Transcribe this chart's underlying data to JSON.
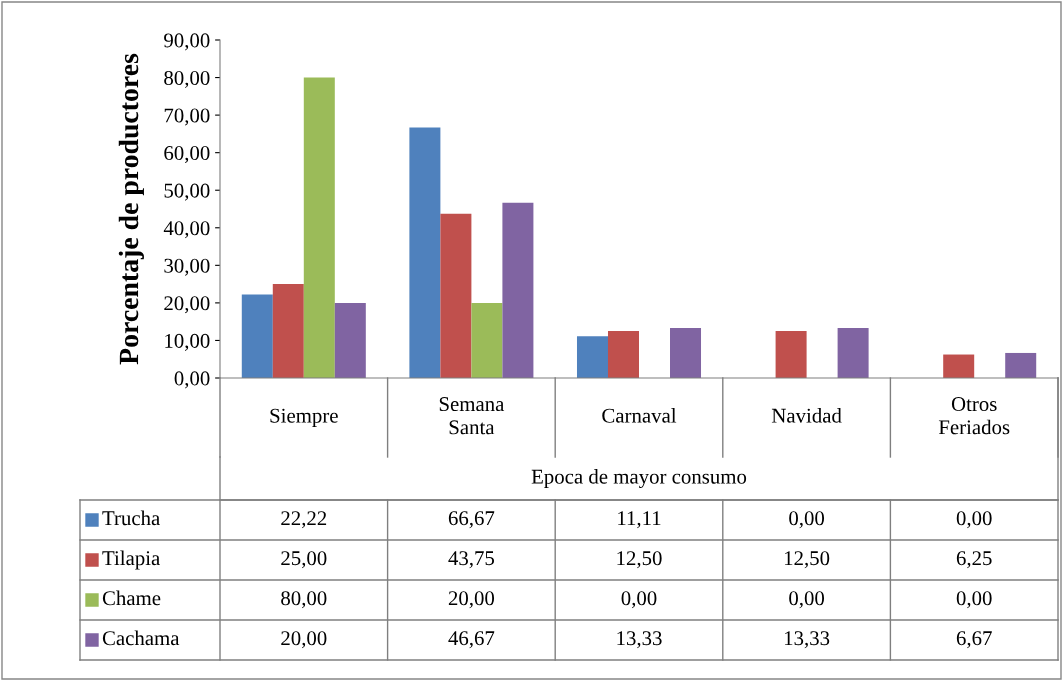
{
  "chart_data": {
    "type": "bar",
    "ylabel": "Porcentaje de productores",
    "xlabel": "Epoca de mayor consumo",
    "categories": [
      "Siempre",
      "Semana\nSanta",
      "Carnaval",
      "Navidad",
      "Otros\nFeriados"
    ],
    "series": [
      {
        "name": "Trucha",
        "color": "#4f81bd",
        "values": [
          22.22,
          66.67,
          11.11,
          0.0,
          0.0
        ],
        "value_labels": [
          "22,22",
          "66,67",
          "11,11",
          "0,00",
          "0,00"
        ]
      },
      {
        "name": "Tilapia",
        "color": "#c0504d",
        "values": [
          25.0,
          43.75,
          12.5,
          12.5,
          6.25
        ],
        "value_labels": [
          "25,00",
          "43,75",
          "12,50",
          "12,50",
          "6,25"
        ]
      },
      {
        "name": "Chame",
        "color": "#9bbb59",
        "values": [
          80.0,
          20.0,
          0.0,
          0.0,
          0.0
        ],
        "value_labels": [
          "80,00",
          "20,00",
          "0,00",
          "0,00",
          "0,00"
        ]
      },
      {
        "name": "Cachama",
        "color": "#8064a2",
        "values": [
          20.0,
          46.67,
          13.33,
          13.33,
          6.67
        ],
        "value_labels": [
          "20,00",
          "46,67",
          "13,33",
          "13,33",
          "6,67"
        ]
      }
    ],
    "ylim": [
      0,
      90
    ],
    "yticks": [
      {
        "value": 0,
        "label": "0,00"
      },
      {
        "value": 10,
        "label": "10,00"
      },
      {
        "value": 20,
        "label": "20,00"
      },
      {
        "value": 30,
        "label": "30,00"
      },
      {
        "value": 40,
        "label": "40,00"
      },
      {
        "value": 50,
        "label": "50,00"
      },
      {
        "value": 60,
        "label": "60,00"
      },
      {
        "value": 70,
        "label": "70,00"
      },
      {
        "value": 80,
        "label": "80,00"
      },
      {
        "value": 90,
        "label": "90,00"
      }
    ],
    "grid": false,
    "legend": "bottom"
  }
}
